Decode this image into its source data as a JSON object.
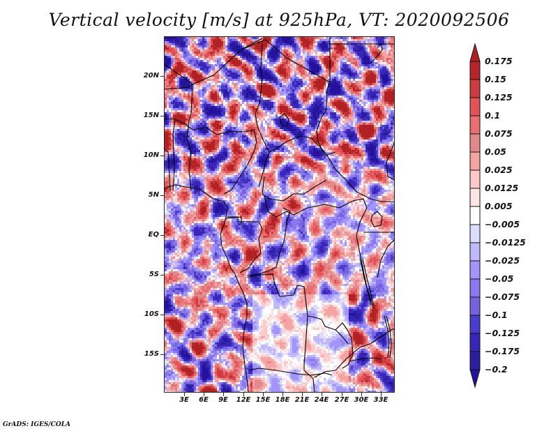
{
  "title": "Vertical velocity [m/s] at 925hPa, VT: 2020092506",
  "credit": "GrADS: IGES/COLA",
  "chart_data": {
    "type": "heatmap",
    "title": "Vertical velocity [m/s] at 925hPa, VT: 2020092506",
    "variable": "Vertical velocity",
    "units": "m/s",
    "level": "925hPa",
    "valid_time": "2020092506",
    "xlabel": "",
    "ylabel": "",
    "x_ticks": [
      "3E",
      "6E",
      "9E",
      "12E",
      "15E",
      "18E",
      "21E",
      "24E",
      "27E",
      "30E",
      "33E"
    ],
    "x_tick_values": [
      3,
      6,
      9,
      12,
      15,
      18,
      21,
      24,
      27,
      30,
      33
    ],
    "y_ticks": [
      "20N",
      "15N",
      "10N",
      "5N",
      "EQ",
      "5S",
      "10S",
      "15S"
    ],
    "y_tick_values": [
      20,
      15,
      10,
      5,
      0,
      -5,
      -10,
      -15
    ],
    "xlim": [
      0.5,
      35.5
    ],
    "ylim": [
      -19.7,
      24.8
    ],
    "grid": false,
    "legend_position": "right",
    "colorbar": {
      "levels": [
        0.175,
        0.15,
        0.125,
        0.1,
        0.075,
        0.05,
        0.025,
        0.0125,
        0.005,
        -0.005,
        -0.0125,
        -0.025,
        -0.05,
        -0.075,
        -0.1,
        -0.125,
        -0.175,
        -0.2
      ],
      "labels": [
        "0.175",
        "0.15",
        "0.125",
        "0.1",
        "0.075",
        "0.05",
        "0.025",
        "0.0125",
        "0.005",
        "−0.005",
        "−0.0125",
        "−0.025",
        "−0.05",
        "−0.075",
        "−0.1",
        "−0.125",
        "−0.175",
        "−0.2"
      ],
      "colors": [
        "#b12123",
        "#b62628",
        "#cc3d3f",
        "#e35254",
        "#e86e70",
        "#e3898b",
        "#f6a3a4",
        "#fdc8c8",
        "#fde5e5",
        "#ffffff",
        "#dcdcfc",
        "#c0b8fc",
        "#a195fb",
        "#8a78ee",
        "#7562dc",
        "#4a3ccd",
        "#3925b7",
        "#2c1f9f",
        "#24129c"
      ],
      "extend": "both"
    }
  }
}
